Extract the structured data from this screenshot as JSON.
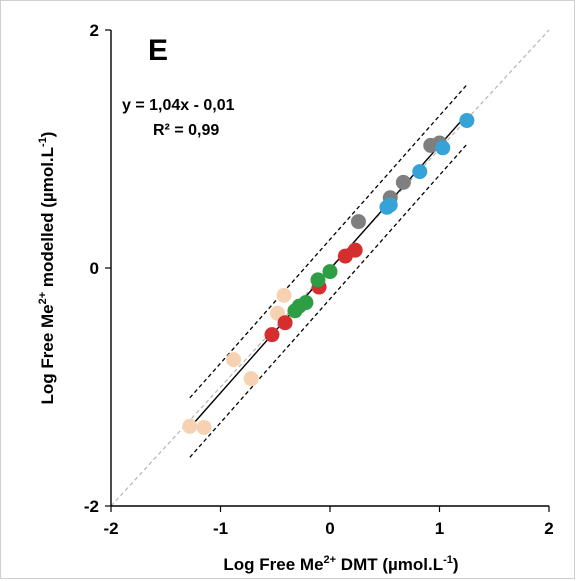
{
  "chart_data": {
    "type": "scatter",
    "panel_label": "E",
    "xlabel": {
      "pre": "Log Free Me",
      "sup1": "2+",
      "mid": " DMT (µmol.L",
      "sup2": "-1",
      "post": ")"
    },
    "ylabel": {
      "pre": "Log Free Me",
      "sup1": "2+",
      "mid": " modelled (µmol.L",
      "sup2": "-1",
      "post": ")"
    },
    "equation": "y = 1,04x - 0,01",
    "r_squared": "R² = 0,99",
    "xlim": [
      -2,
      2
    ],
    "ylim": [
      -2,
      2
    ],
    "x_ticks": [
      {
        "value": -2,
        "label": "-2"
      },
      {
        "value": -1,
        "label": "-1"
      },
      {
        "value": 0,
        "label": "0"
      },
      {
        "value": 1,
        "label": "1"
      },
      {
        "value": 2,
        "label": "2"
      }
    ],
    "y_ticks": [
      {
        "value": -2,
        "label": "-2"
      },
      {
        "value": 0,
        "label": "0"
      },
      {
        "value": 2,
        "label": "2"
      }
    ],
    "grid": false,
    "regression": {
      "slope": 1.04,
      "intercept": -0.01,
      "x_range": [
        -1.28,
        1.25
      ]
    },
    "confidence_band": {
      "offset": 0.25,
      "x_range": [
        -1.28,
        1.25
      ]
    },
    "identity_line": {
      "x_range": [
        -2,
        2
      ]
    },
    "series": [
      {
        "color": "#f6d2b2",
        "points": [
          [
            -1.28,
            -1.33
          ],
          [
            -1.15,
            -1.34
          ],
          [
            -0.88,
            -0.77
          ],
          [
            -0.72,
            -0.93
          ],
          [
            -0.48,
            -0.38
          ],
          [
            -0.42,
            -0.23
          ]
        ]
      },
      {
        "color": "#d42e2e",
        "points": [
          [
            -0.53,
            -0.56
          ],
          [
            -0.41,
            -0.46
          ],
          [
            -0.1,
            -0.16
          ],
          [
            0.14,
            0.1
          ],
          [
            0.23,
            0.15
          ]
        ]
      },
      {
        "color": "#2e9e45",
        "points": [
          [
            -0.32,
            -0.36
          ],
          [
            -0.28,
            -0.32
          ],
          [
            -0.22,
            -0.29
          ],
          [
            -0.11,
            -0.1
          ],
          [
            0.0,
            -0.03
          ]
        ]
      },
      {
        "color": "#7f7f7f",
        "points": [
          [
            0.26,
            0.39
          ],
          [
            0.55,
            0.59
          ],
          [
            0.67,
            0.72
          ],
          [
            0.92,
            1.03
          ],
          [
            1.0,
            1.05
          ]
        ]
      },
      {
        "color": "#36a3d6",
        "points": [
          [
            0.52,
            0.51
          ],
          [
            0.55,
            0.53
          ],
          [
            0.82,
            0.81
          ],
          [
            1.03,
            1.01
          ],
          [
            1.25,
            1.24
          ]
        ]
      }
    ]
  }
}
